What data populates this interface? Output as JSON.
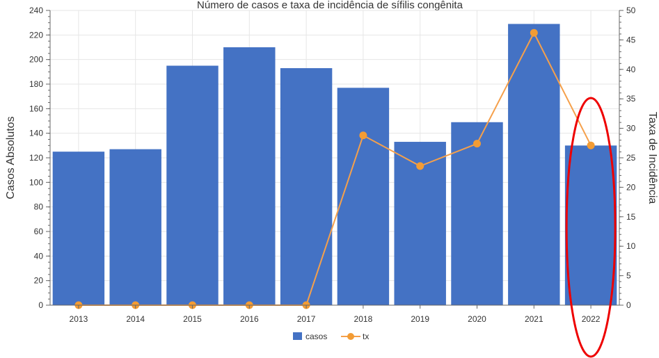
{
  "chart_data": {
    "type": "bar",
    "title": "Número de casos e taxa de incidência de sífilis congênita",
    "categories": [
      "2013",
      "2014",
      "2015",
      "2016",
      "2017",
      "2018",
      "2019",
      "2020",
      "2021",
      "2022"
    ],
    "series": [
      {
        "name": "casos",
        "type": "bar",
        "axis": "left",
        "values": [
          125,
          127,
          195,
          210,
          193,
          177,
          133,
          149,
          229,
          130
        ]
      },
      {
        "name": "tx",
        "type": "line",
        "axis": "right",
        "values": [
          0,
          0,
          0,
          0,
          0,
          28.8,
          23.6,
          27.4,
          46.2,
          27.1
        ]
      }
    ],
    "ylabel": "Casos Absolutos",
    "y2label": "Taxa de Incidência",
    "ylim": [
      0,
      240
    ],
    "y2lim": [
      0,
      50
    ],
    "yticks": [
      "0",
      "20",
      "40",
      "60",
      "80",
      "100",
      "120",
      "140",
      "160",
      "180",
      "200",
      "220",
      "240"
    ],
    "y2ticks": [
      "0",
      "5",
      "10",
      "15",
      "20",
      "25",
      "30",
      "35",
      "40",
      "45",
      "50"
    ],
    "grid": true,
    "legend": "bottom-center",
    "highlight_category": "2022",
    "colors": {
      "bar": "#4472c4",
      "line": "#f5a04b",
      "marker": "#f39c34",
      "highlight": "#ee0000",
      "grid": "#e6e6e6",
      "axis": "#666666",
      "text": "#333333"
    }
  }
}
